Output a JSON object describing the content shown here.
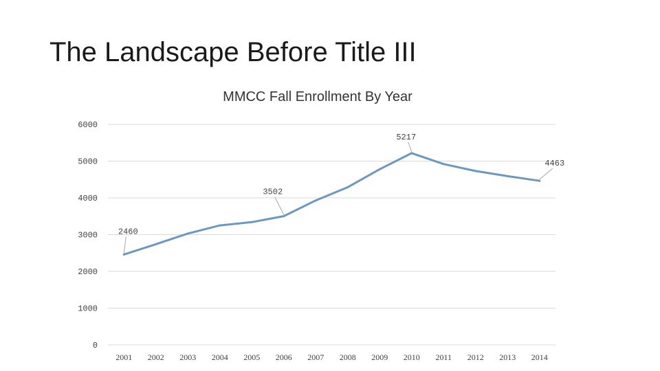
{
  "slide": {
    "title": "The Landscape Before Title III"
  },
  "chart_data": {
    "type": "line",
    "title": "MMCC Fall Enrollment By Year",
    "xlabel": "",
    "ylabel": "",
    "categories": [
      "2001",
      "2002",
      "2003",
      "2004",
      "2005",
      "2006",
      "2007",
      "2008",
      "2009",
      "2010",
      "2011",
      "2012",
      "2013",
      "2014"
    ],
    "series": [
      {
        "name": "Fall Enrollment",
        "color": "#6a98c2",
        "values": [
          2460,
          2740,
          3030,
          3250,
          3340,
          3502,
          3930,
          4290,
          4780,
          5217,
          4920,
          4730,
          4590,
          4463
        ]
      }
    ],
    "yticks": [
      "0",
      "1000",
      "2000",
      "3000",
      "4000",
      "5000",
      "6000"
    ],
    "ylim": [
      0,
      6000
    ],
    "grid": true,
    "legend": "none",
    "data_labels": [
      {
        "index": 0,
        "text": "2460"
      },
      {
        "index": 5,
        "text": "3502"
      },
      {
        "index": 9,
        "text": "5217"
      },
      {
        "index": 13,
        "text": "4463"
      }
    ]
  }
}
